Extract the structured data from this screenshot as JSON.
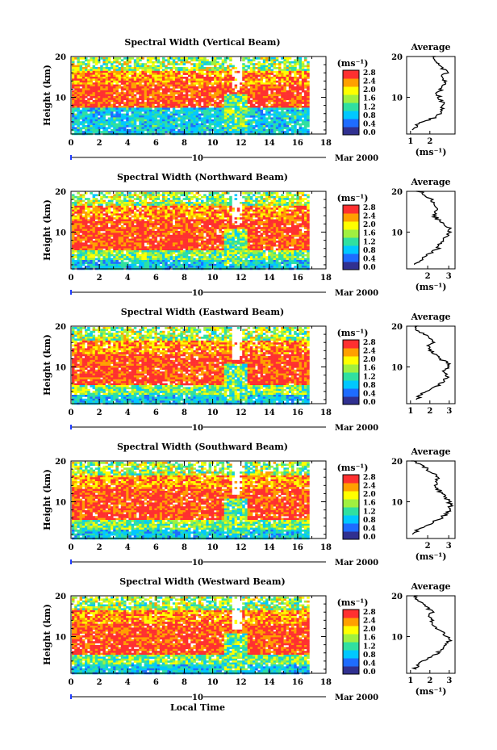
{
  "figure": {
    "date_label": "Mar 2000",
    "day_label": "10",
    "x_axis_title": "Local Time",
    "colorbar_unit": "(ms⁻¹)",
    "profile_title": "Average",
    "profile_unit": "(ms⁻¹)",
    "y_axis_title": "Height (km)"
  },
  "chart_data": [
    {
      "type": "heatmap",
      "title": "Spectral Width (Vertical Beam)",
      "ylabel": "Height (km)",
      "x_ticks": [
        0,
        2,
        4,
        6,
        8,
        10,
        12,
        14,
        16,
        18
      ],
      "xlim": [
        0,
        18
      ],
      "ylim": [
        1,
        20
      ],
      "y_ticks": [
        10,
        20
      ],
      "data_xrange": [
        0,
        16.8
      ],
      "colorbar": {
        "ticks": [
          "2.8",
          "2.4",
          "2.0",
          "1.6",
          "1.2",
          "0.8",
          "0.4",
          "0.0"
        ],
        "range": [
          0,
          2.8
        ]
      },
      "colors": [
        "#303090",
        "#1e6cff",
        "#00c8ff",
        "#30e0a0",
        "#a0f040",
        "#ffff00",
        "#ffa000",
        "#ff3030"
      ],
      "profile": {
        "title": "Average",
        "xlabel": "(ms⁻¹)",
        "x_ticks": [
          1,
          2
        ],
        "xlim": [
          0.8,
          3.3
        ],
        "ylim": [
          1,
          20
        ],
        "x": [
          1.2,
          1.3,
          1.6,
          2.2,
          2.5,
          2.6,
          2.7,
          2.6,
          2.5,
          2.4,
          2.6,
          2.7,
          2.8,
          2.6,
          2.9,
          2.7,
          2.4,
          2.3,
          2.2,
          2.2
        ],
        "y": [
          2,
          3,
          4,
          5,
          6,
          7,
          8,
          9,
          10,
          11,
          12,
          13,
          14,
          15,
          16,
          17,
          18,
          19,
          20,
          20
        ]
      }
    },
    {
      "type": "heatmap",
      "title": "Spectral Width (Northward Beam)",
      "ylabel": "Height (km)",
      "x_ticks": [
        0,
        2,
        4,
        6,
        8,
        10,
        12,
        14,
        16,
        18
      ],
      "xlim": [
        0,
        18
      ],
      "ylim": [
        1,
        20
      ],
      "y_ticks": [
        10,
        20
      ],
      "data_xrange": [
        0,
        16.8
      ],
      "colorbar": {
        "ticks": [
          "2.8",
          "2.4",
          "2.0",
          "1.6",
          "1.2",
          "0.8",
          "0.4",
          "0.0"
        ],
        "range": [
          0,
          2.8
        ]
      },
      "colors": [
        "#303090",
        "#1e6cff",
        "#00c8ff",
        "#30e0a0",
        "#a0f040",
        "#ffff00",
        "#ffa000",
        "#ff3030"
      ],
      "profile": {
        "title": "Average",
        "xlabel": "(ms⁻¹)",
        "x_ticks": [
          2,
          3
        ],
        "xlim": [
          1.0,
          3.3
        ],
        "ylim": [
          1,
          20
        ],
        "x": [
          1.4,
          1.6,
          1.8,
          2.2,
          2.5,
          2.6,
          2.8,
          2.9,
          3.1,
          3.0,
          2.7,
          2.5,
          2.3,
          2.4,
          2.5,
          2.3,
          2.2,
          1.9,
          1.6,
          1.5
        ],
        "y": [
          2,
          3,
          4,
          5,
          6,
          7,
          8,
          9,
          10,
          11,
          12,
          13,
          14,
          15,
          16,
          17,
          18,
          19,
          20,
          20
        ]
      }
    },
    {
      "type": "heatmap",
      "title": "Spectral Width (Eastward Beam)",
      "ylabel": "Height (km)",
      "x_ticks": [
        0,
        2,
        4,
        6,
        8,
        10,
        12,
        14,
        16,
        18
      ],
      "xlim": [
        0,
        18
      ],
      "ylim": [
        1,
        20
      ],
      "y_ticks": [
        10,
        20
      ],
      "data_xrange": [
        0,
        16.8
      ],
      "colorbar": {
        "ticks": [
          "2.8",
          "2.4",
          "2.0",
          "1.6",
          "1.2",
          "0.8",
          "0.4",
          "0.0"
        ],
        "range": [
          0,
          2.8
        ]
      },
      "colors": [
        "#303090",
        "#1e6cff",
        "#00c8ff",
        "#30e0a0",
        "#a0f040",
        "#ffff00",
        "#ffa000",
        "#ff3030"
      ],
      "profile": {
        "title": "Average",
        "xlabel": "",
        "x_ticks": [
          1,
          2,
          3
        ],
        "xlim": [
          0.8,
          3.3
        ],
        "ylim": [
          1,
          20
        ],
        "x": [
          1.3,
          1.5,
          1.8,
          2.3,
          2.6,
          2.8,
          2.9,
          2.7,
          3.0,
          2.9,
          2.5,
          2.3,
          2.0,
          1.9,
          2.2,
          2.0,
          1.7,
          1.4,
          1.2,
          1.2
        ],
        "y": [
          2,
          3,
          4,
          5,
          6,
          7,
          8,
          9,
          10,
          11,
          12,
          13,
          14,
          15,
          16,
          17,
          18,
          19,
          20,
          20
        ]
      }
    },
    {
      "type": "heatmap",
      "title": "Spectral Width (Southward Beam)",
      "ylabel": "Height (km)",
      "x_ticks": [
        0,
        2,
        4,
        6,
        8,
        10,
        12,
        14,
        16,
        18
      ],
      "xlim": [
        0,
        18
      ],
      "ylim": [
        1,
        20
      ],
      "y_ticks": [
        10,
        20
      ],
      "data_xrange": [
        0,
        16.8
      ],
      "colorbar": {
        "ticks": [
          "2.8",
          "2.4",
          "2.0",
          "1.6",
          "1.2",
          "0.8",
          "0.4",
          "0.0"
        ],
        "range": [
          0,
          2.8
        ]
      },
      "colors": [
        "#303090",
        "#1e6cff",
        "#00c8ff",
        "#30e0a0",
        "#a0f040",
        "#ffff00",
        "#ffa000",
        "#ff3030"
      ],
      "profile": {
        "title": "Average",
        "xlabel": "(ms⁻¹)",
        "x_ticks": [
          2,
          3
        ],
        "xlim": [
          1.0,
          3.3
        ],
        "ylim": [
          1,
          20
        ],
        "x": [
          1.3,
          1.5,
          1.8,
          2.3,
          2.6,
          2.9,
          3.0,
          3.1,
          3.0,
          2.9,
          2.7,
          2.5,
          2.4,
          2.3,
          2.5,
          2.2,
          2.0,
          1.7,
          1.4,
          1.3
        ],
        "y": [
          2,
          3,
          4,
          5,
          6,
          7,
          8,
          9,
          10,
          11,
          12,
          13,
          14,
          15,
          16,
          17,
          18,
          19,
          20,
          20
        ]
      }
    },
    {
      "type": "heatmap",
      "title": "Spectral Width (Westward Beam)",
      "ylabel": "Height (km)",
      "x_ticks": [
        0,
        2,
        4,
        6,
        8,
        10,
        12,
        14,
        16,
        18
      ],
      "xlim": [
        0,
        18
      ],
      "ylim": [
        1,
        20
      ],
      "y_ticks": [
        10,
        20
      ],
      "data_xrange": [
        0,
        16.8
      ],
      "colorbar": {
        "ticks": [
          "2.8",
          "2.4",
          "2.0",
          "1.6",
          "1.2",
          "0.8",
          "0.4",
          "0.0"
        ],
        "range": [
          0,
          2.8
        ]
      },
      "colors": [
        "#303090",
        "#1e6cff",
        "#00c8ff",
        "#30e0a0",
        "#a0f040",
        "#ffff00",
        "#ffa000",
        "#ff3030"
      ],
      "profile": {
        "title": "Average",
        "xlabel": "(ms⁻¹)",
        "x_ticks": [
          1,
          2,
          3
        ],
        "xlim": [
          0.8,
          3.3
        ],
        "ylim": [
          1,
          20
        ],
        "x": [
          1.2,
          1.4,
          1.7,
          2.1,
          2.4,
          2.6,
          2.8,
          3.0,
          2.9,
          2.7,
          2.4,
          2.2,
          2.1,
          1.9,
          2.1,
          1.9,
          1.6,
          1.4,
          1.3,
          1.2
        ],
        "y": [
          2,
          3,
          4,
          5,
          6,
          7,
          8,
          9,
          10,
          11,
          12,
          13,
          14,
          15,
          16,
          17,
          18,
          19,
          20,
          20
        ]
      }
    }
  ]
}
